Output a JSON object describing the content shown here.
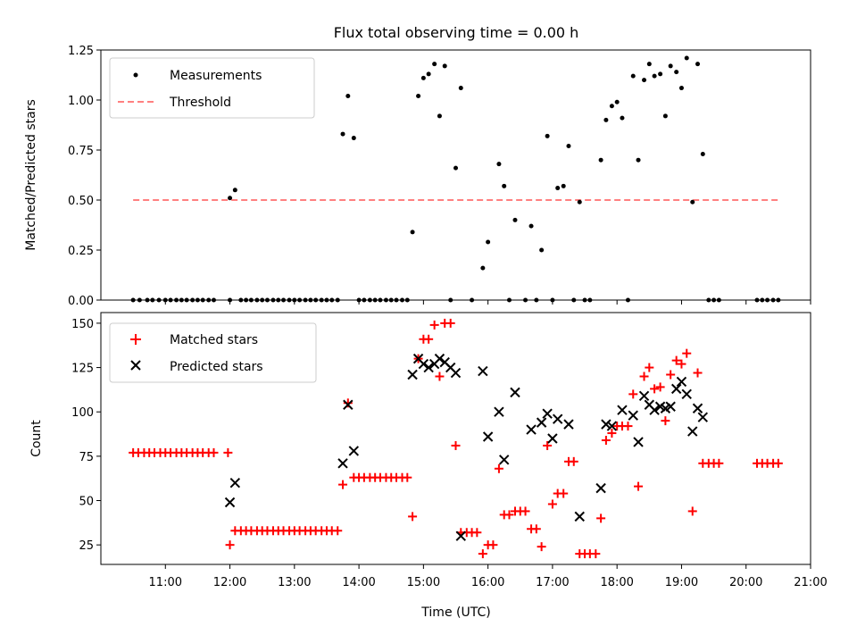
{
  "chart_data": [
    {
      "type": "scatter",
      "title": "Flux total observing time = 0.00 h",
      "xlabel": "",
      "ylabel": "Matched/Predicted stars",
      "ylim": [
        0,
        1.25
      ],
      "yticks": [
        "0.00",
        "0.25",
        "0.50",
        "0.75",
        "1.00",
        "1.25"
      ],
      "grid": false,
      "legend_position": "top-left",
      "series": [
        {
          "name": "Measurements",
          "marker": "dot",
          "color": "#000000",
          "points": [
            [
              10.5,
              0
            ],
            [
              10.6,
              0
            ],
            [
              10.72,
              0
            ],
            [
              10.8,
              0
            ],
            [
              10.9,
              0
            ],
            [
              11.0,
              0
            ],
            [
              11.08,
              0
            ],
            [
              11.17,
              0
            ],
            [
              11.25,
              0
            ],
            [
              11.33,
              0
            ],
            [
              11.42,
              0
            ],
            [
              11.5,
              0
            ],
            [
              11.58,
              0
            ],
            [
              11.67,
              0
            ],
            [
              11.75,
              0
            ],
            [
              12.0,
              0.51
            ],
            [
              12.08,
              0.55
            ],
            [
              12.0,
              0
            ],
            [
              12.17,
              0
            ],
            [
              12.25,
              0
            ],
            [
              12.33,
              0
            ],
            [
              12.42,
              0
            ],
            [
              12.5,
              0
            ],
            [
              12.58,
              0
            ],
            [
              12.67,
              0
            ],
            [
              12.75,
              0
            ],
            [
              12.83,
              0
            ],
            [
              12.92,
              0
            ],
            [
              13.0,
              0
            ],
            [
              13.08,
              0
            ],
            [
              13.17,
              0
            ],
            [
              13.25,
              0
            ],
            [
              13.33,
              0
            ],
            [
              13.42,
              0
            ],
            [
              13.5,
              0
            ],
            [
              13.58,
              0
            ],
            [
              13.67,
              0
            ],
            [
              13.75,
              0.83
            ],
            [
              13.83,
              1.02
            ],
            [
              13.92,
              0.81
            ],
            [
              14.0,
              0
            ],
            [
              14.08,
              0
            ],
            [
              14.17,
              0
            ],
            [
              14.25,
              0
            ],
            [
              14.33,
              0
            ],
            [
              14.42,
              0
            ],
            [
              14.5,
              0
            ],
            [
              14.58,
              0
            ],
            [
              14.67,
              0
            ],
            [
              14.75,
              0
            ],
            [
              14.83,
              0.34
            ],
            [
              14.92,
              1.02
            ],
            [
              15.0,
              1.11
            ],
            [
              15.08,
              1.13
            ],
            [
              15.17,
              1.18
            ],
            [
              15.25,
              0.92
            ],
            [
              15.33,
              1.17
            ],
            [
              15.42,
              0
            ],
            [
              15.5,
              0.66
            ],
            [
              15.58,
              1.06
            ],
            [
              15.75,
              0
            ],
            [
              15.92,
              0.16
            ],
            [
              16.0,
              0.29
            ],
            [
              16.17,
              0.68
            ],
            [
              16.25,
              0.57
            ],
            [
              16.33,
              0
            ],
            [
              16.42,
              0.4
            ],
            [
              16.58,
              0
            ],
            [
              16.67,
              0.37
            ],
            [
              16.75,
              0
            ],
            [
              16.83,
              0.25
            ],
            [
              16.92,
              0.82
            ],
            [
              17.0,
              0
            ],
            [
              17.08,
              0.56
            ],
            [
              17.17,
              0.57
            ],
            [
              17.25,
              0.77
            ],
            [
              17.33,
              0
            ],
            [
              17.42,
              0.49
            ],
            [
              17.5,
              0
            ],
            [
              17.58,
              0
            ],
            [
              17.75,
              0.7
            ],
            [
              17.83,
              0.9
            ],
            [
              17.92,
              0.97
            ],
            [
              18.0,
              0.99
            ],
            [
              18.08,
              0.91
            ],
            [
              18.17,
              0
            ],
            [
              18.25,
              1.12
            ],
            [
              18.33,
              0.7
            ],
            [
              18.42,
              1.1
            ],
            [
              18.5,
              1.18
            ],
            [
              18.58,
              1.12
            ],
            [
              18.67,
              1.13
            ],
            [
              18.75,
              0.92
            ],
            [
              18.83,
              1.17
            ],
            [
              18.92,
              1.14
            ],
            [
              19.0,
              1.06
            ],
            [
              19.08,
              1.21
            ],
            [
              19.17,
              0.49
            ],
            [
              19.25,
              1.18
            ],
            [
              19.33,
              0.73
            ],
            [
              19.42,
              0
            ],
            [
              19.5,
              0
            ],
            [
              19.58,
              0
            ],
            [
              20.17,
              0
            ],
            [
              20.25,
              0
            ],
            [
              20.33,
              0
            ],
            [
              20.42,
              0
            ],
            [
              20.5,
              0
            ]
          ]
        },
        {
          "name": "Threshold",
          "style": "dashed",
          "color": "#ff8080",
          "points": [
            [
              10.5,
              0.5
            ],
            [
              20.5,
              0.5
            ]
          ]
        }
      ]
    },
    {
      "type": "scatter",
      "title": "",
      "xlabel": "Time (UTC)",
      "ylabel": "Count",
      "ylim": [
        14,
        156
      ],
      "yticks": [
        "25",
        "50",
        "75",
        "100",
        "125",
        "150"
      ],
      "xlim": [
        10.0,
        21.0
      ],
      "xticks": [
        "11:00",
        "12:00",
        "13:00",
        "14:00",
        "15:00",
        "16:00",
        "17:00",
        "18:00",
        "19:00",
        "20:00",
        "21:00"
      ],
      "grid": false,
      "legend_position": "top-left",
      "series": [
        {
          "name": "Matched stars",
          "marker": "plus",
          "color": "#ff0000",
          "points": [
            [
              10.5,
              77
            ],
            [
              10.58,
              77
            ],
            [
              10.67,
              77
            ],
            [
              10.75,
              77
            ],
            [
              10.83,
              77
            ],
            [
              10.92,
              77
            ],
            [
              11.0,
              77
            ],
            [
              11.08,
              77
            ],
            [
              11.17,
              77
            ],
            [
              11.25,
              77
            ],
            [
              11.33,
              77
            ],
            [
              11.42,
              77
            ],
            [
              11.5,
              77
            ],
            [
              11.58,
              77
            ],
            [
              11.67,
              77
            ],
            [
              11.75,
              77
            ],
            [
              11.97,
              77
            ],
            [
              12.0,
              25
            ],
            [
              12.08,
              33
            ],
            [
              12.17,
              33
            ],
            [
              12.25,
              33
            ],
            [
              12.33,
              33
            ],
            [
              12.42,
              33
            ],
            [
              12.5,
              33
            ],
            [
              12.58,
              33
            ],
            [
              12.67,
              33
            ],
            [
              12.75,
              33
            ],
            [
              12.83,
              33
            ],
            [
              12.92,
              33
            ],
            [
              13.0,
              33
            ],
            [
              13.08,
              33
            ],
            [
              13.17,
              33
            ],
            [
              13.25,
              33
            ],
            [
              13.33,
              33
            ],
            [
              13.42,
              33
            ],
            [
              13.5,
              33
            ],
            [
              13.58,
              33
            ],
            [
              13.67,
              33
            ],
            [
              13.75,
              59
            ],
            [
              13.83,
              105
            ],
            [
              13.92,
              63
            ],
            [
              14.0,
              63
            ],
            [
              14.08,
              63
            ],
            [
              14.17,
              63
            ],
            [
              14.25,
              63
            ],
            [
              14.33,
              63
            ],
            [
              14.42,
              63
            ],
            [
              14.5,
              63
            ],
            [
              14.58,
              63
            ],
            [
              14.67,
              63
            ],
            [
              14.75,
              63
            ],
            [
              14.83,
              41
            ],
            [
              14.92,
              130
            ],
            [
              15.0,
              141
            ],
            [
              15.08,
              141
            ],
            [
              15.17,
              149
            ],
            [
              15.25,
              120
            ],
            [
              15.33,
              150
            ],
            [
              15.42,
              150
            ],
            [
              15.5,
              81
            ],
            [
              15.58,
              32
            ],
            [
              15.67,
              32
            ],
            [
              15.75,
              32
            ],
            [
              15.83,
              32
            ],
            [
              15.92,
              20
            ],
            [
              16.0,
              25
            ],
            [
              16.08,
              25
            ],
            [
              16.17,
              68
            ],
            [
              16.25,
              42
            ],
            [
              16.33,
              42
            ],
            [
              16.42,
              44
            ],
            [
              16.5,
              44
            ],
            [
              16.58,
              44
            ],
            [
              16.67,
              34
            ],
            [
              16.75,
              34
            ],
            [
              16.83,
              24
            ],
            [
              16.92,
              81
            ],
            [
              17.0,
              48
            ],
            [
              17.08,
              54
            ],
            [
              17.17,
              54
            ],
            [
              17.25,
              72
            ],
            [
              17.33,
              72
            ],
            [
              17.42,
              20
            ],
            [
              17.5,
              20
            ],
            [
              17.58,
              20
            ],
            [
              17.67,
              20
            ],
            [
              17.75,
              40
            ],
            [
              17.83,
              84
            ],
            [
              17.92,
              88
            ],
            [
              18.0,
              92
            ],
            [
              18.08,
              92
            ],
            [
              18.17,
              92
            ],
            [
              18.25,
              110
            ],
            [
              18.33,
              58
            ],
            [
              18.42,
              120
            ],
            [
              18.5,
              125
            ],
            [
              18.58,
              113
            ],
            [
              18.67,
              114
            ],
            [
              18.75,
              95
            ],
            [
              18.83,
              121
            ],
            [
              18.92,
              129
            ],
            [
              19.0,
              127
            ],
            [
              19.08,
              133
            ],
            [
              19.17,
              44
            ],
            [
              19.25,
              122
            ],
            [
              19.33,
              71
            ],
            [
              19.42,
              71
            ],
            [
              19.5,
              71
            ],
            [
              19.58,
              71
            ],
            [
              20.17,
              71
            ],
            [
              20.25,
              71
            ],
            [
              20.33,
              71
            ],
            [
              20.42,
              71
            ],
            [
              20.5,
              71
            ]
          ]
        },
        {
          "name": "Predicted stars",
          "marker": "x",
          "color": "#000000",
          "points": [
            [
              12.0,
              49
            ],
            [
              12.08,
              60
            ],
            [
              13.75,
              71
            ],
            [
              13.83,
              104
            ],
            [
              13.92,
              78
            ],
            [
              14.83,
              121
            ],
            [
              14.92,
              130
            ],
            [
              15.0,
              127
            ],
            [
              15.08,
              125
            ],
            [
              15.17,
              127
            ],
            [
              15.25,
              130
            ],
            [
              15.33,
              128
            ],
            [
              15.42,
              125
            ],
            [
              15.5,
              122
            ],
            [
              15.58,
              30
            ],
            [
              15.92,
              123
            ],
            [
              16.0,
              86
            ],
            [
              16.17,
              100
            ],
            [
              16.25,
              73
            ],
            [
              16.42,
              111
            ],
            [
              16.67,
              90
            ],
            [
              16.83,
              94
            ],
            [
              16.92,
              99
            ],
            [
              17.0,
              85
            ],
            [
              17.08,
              96
            ],
            [
              17.25,
              93
            ],
            [
              17.42,
              41
            ],
            [
              17.75,
              57
            ],
            [
              17.83,
              93
            ],
            [
              17.92,
              92
            ],
            [
              18.08,
              101
            ],
            [
              18.25,
              98
            ],
            [
              18.33,
              83
            ],
            [
              18.42,
              109
            ],
            [
              18.5,
              104
            ],
            [
              18.58,
              101
            ],
            [
              18.67,
              103
            ],
            [
              18.75,
              102
            ],
            [
              18.83,
              103
            ],
            [
              18.92,
              113
            ],
            [
              19.0,
              117
            ],
            [
              19.08,
              110
            ],
            [
              19.17,
              89
            ],
            [
              19.25,
              102
            ],
            [
              19.33,
              97
            ]
          ]
        }
      ]
    }
  ]
}
